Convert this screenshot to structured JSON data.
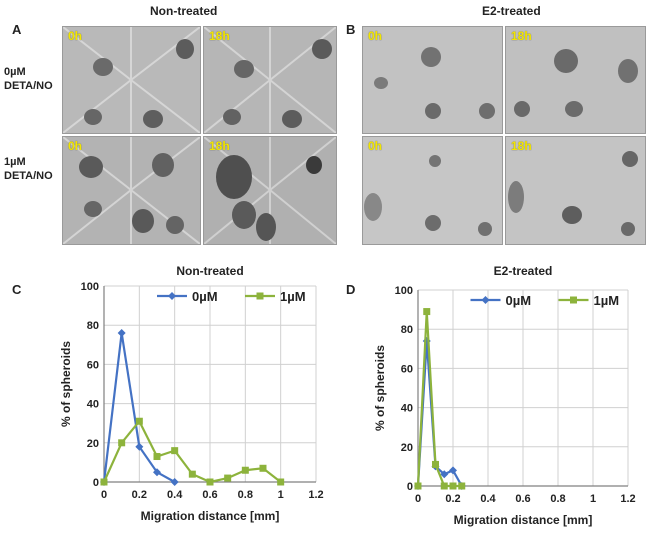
{
  "panels": {
    "A": "A",
    "B": "B",
    "C": "C",
    "D": "D"
  },
  "top": {
    "left_title": "Non-treated",
    "right_title": "E2-treated",
    "row1_label_a": "0µM",
    "row1_label_b": "DETA/NO",
    "row2_label_a": "1µM",
    "row2_label_b": "DETA/NO",
    "t0": "0h",
    "t18": "18h"
  },
  "colors": {
    "series_0uM": "#4472c4",
    "series_1uM": "#8db33c",
    "grid": "#d0d0d0",
    "axis": "#808080"
  },
  "chart_data": [
    {
      "type": "line",
      "title": "Non-treated",
      "xlabel": "Migration distance [mm]",
      "ylabel": "% of spheroids",
      "xlim": [
        0,
        1.2
      ],
      "ylim": [
        0,
        100
      ],
      "xticks": [
        "0",
        "0.2",
        "0.4",
        "0.6",
        "0.8",
        "1",
        "1.2"
      ],
      "yticks": [
        "0",
        "20",
        "40",
        "60",
        "80",
        "100"
      ],
      "legend": "top",
      "series": [
        {
          "name": "0µM",
          "marker": "diamond",
          "x": [
            0,
            0.1,
            0.2,
            0.3,
            0.4
          ],
          "y": [
            0,
            76,
            18,
            5,
            0
          ]
        },
        {
          "name": "1µM",
          "marker": "square",
          "x": [
            0,
            0.1,
            0.2,
            0.3,
            0.4,
            0.5,
            0.6,
            0.7,
            0.8,
            0.9,
            1.0
          ],
          "y": [
            0,
            20,
            31,
            13,
            16,
            4,
            0,
            2,
            6,
            7,
            0
          ]
        }
      ]
    },
    {
      "type": "line",
      "title": "E2-treated",
      "xlabel": "Migration distance [mm]",
      "ylabel": "% of spheroids",
      "xlim": [
        0,
        1.2
      ],
      "ylim": [
        0,
        100
      ],
      "xticks": [
        "0",
        "0.2",
        "0.4",
        "0.6",
        "0.8",
        "1",
        "1.2"
      ],
      "yticks": [
        "0",
        "20",
        "40",
        "60",
        "80",
        "100"
      ],
      "legend": "top",
      "series": [
        {
          "name": "0µM",
          "marker": "diamond",
          "x": [
            0,
            0.05,
            0.1,
            0.15,
            0.2,
            0.25
          ],
          "y": [
            0,
            74,
            10,
            6,
            8,
            0
          ]
        },
        {
          "name": "1µM",
          "marker": "square",
          "x": [
            0,
            0.05,
            0.1,
            0.15,
            0.2,
            0.25
          ],
          "y": [
            0,
            89,
            11,
            0,
            0,
            0
          ]
        }
      ]
    }
  ]
}
